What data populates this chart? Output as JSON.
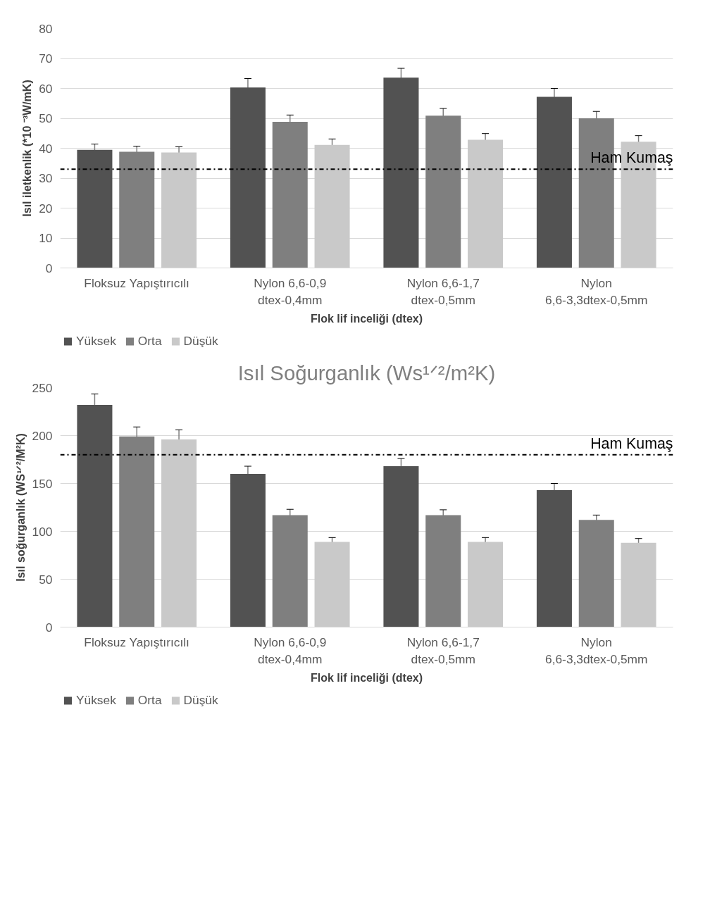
{
  "chart_data": [
    {
      "type": "bar",
      "categories": [
        "Floksuz Yapıştırıcılı",
        "Nylon 6,6-0,9 dtex-0,4mm",
        "Nylon 6,6-1,7 dtex-0,5mm",
        "Nylon 6,6-3,3dtex-0,5mm"
      ],
      "xlabel": "Flok lif inceliği (dtex)",
      "ylabel": "Isıl iletkenlik (*10 ⁻³W/mK)",
      "series": [
        {
          "name": "Yüksek",
          "color": "#525252",
          "values": [
            39.5,
            60.3,
            63.6,
            57.2
          ],
          "errors": [
            1.9,
            3.0,
            3.1,
            2.8
          ]
        },
        {
          "name": "Orta",
          "color": "#7f7f7f",
          "values": [
            38.8,
            48.8,
            50.9,
            50.0
          ],
          "errors": [
            1.9,
            2.3,
            2.4,
            2.3
          ]
        },
        {
          "name": "Düşük",
          "color": "#c9c9c9",
          "values": [
            38.6,
            41.1,
            42.8,
            42.2
          ],
          "errors": [
            1.9,
            2.0,
            2.1,
            2.0
          ]
        }
      ],
      "ylim": [
        0,
        80
      ],
      "yticks": [
        0,
        10,
        20,
        30,
        40,
        50,
        60,
        70,
        80
      ],
      "grid": "y",
      "legend": "bottom left",
      "ref_lines": [
        {
          "axis": "y",
          "value": 33,
          "label": "Ham Kumaş",
          "color": "#000000",
          "line_style": "dashdot"
        }
      ]
    },
    {
      "type": "bar",
      "title": "Isıl Soğurganlık (Ws¹ᐟ²/m²K)",
      "categories": [
        "Floksuz Yapıştırıcılı",
        "Nylon 6,6-0,9 dtex-0,4mm",
        "Nylon 6,6-1,7 dtex-0,5mm",
        "Nylon 6,6-3,3dtex-0,5mm"
      ],
      "xlabel": "Flok lif inceliği (dtex)",
      "ylabel": "Isıl soğurganlık (WS¹ᐟ²/M²K)",
      "series": [
        {
          "name": "Yüksek",
          "color": "#525252",
          "values": [
            232,
            160,
            168,
            143
          ],
          "errors": [
            11.5,
            8,
            8,
            7
          ]
        },
        {
          "name": "Orta",
          "color": "#7f7f7f",
          "values": [
            199,
            117,
            117,
            112
          ],
          "errors": [
            10,
            6,
            5.5,
            5
          ]
        },
        {
          "name": "Düşük",
          "color": "#c9c9c9",
          "values": [
            196,
            89,
            89,
            88
          ],
          "errors": [
            10,
            4.5,
            4.5,
            4.5
          ]
        }
      ],
      "ylim": [
        0,
        250
      ],
      "yticks": [
        0,
        50,
        100,
        150,
        200,
        250
      ],
      "grid": "y",
      "legend": "bottom left",
      "ref_lines": [
        {
          "axis": "y",
          "value": 180,
          "label": "Ham Kumaş",
          "color": "#000000",
          "line_style": "dashdot"
        }
      ]
    }
  ]
}
